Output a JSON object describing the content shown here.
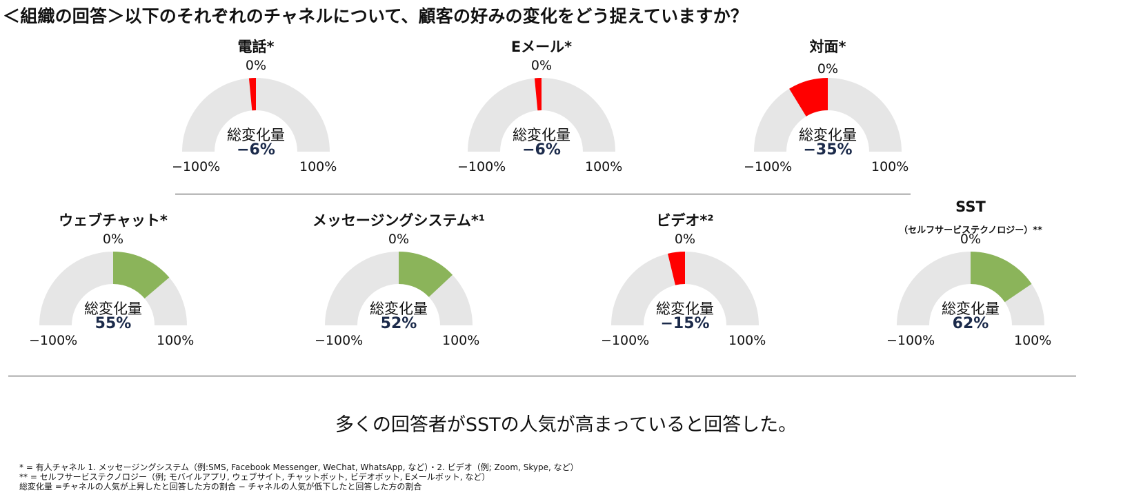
{
  "title": "＜組織の回答＞以下のそれぞれのチャネルについて、顧客の好みの変化をどう捉えていますか？",
  "gauge_labels": {
    "zero": "0%",
    "min": "−100%",
    "max": "100%",
    "total": "総変化量"
  },
  "colors": {
    "track": "#e6e6e6",
    "negative": "#ff0000",
    "positive": "#8bb45a",
    "value_text": "#1b2a4a"
  },
  "chart_data": {
    "type": "gauge",
    "range": [
      -100,
      100
    ],
    "channels": [
      {
        "name": "電話*",
        "sub": "",
        "value": -6,
        "value_label": "−6%"
      },
      {
        "name": "Eメール*",
        "sub": "",
        "value": -6,
        "value_label": "−6%"
      },
      {
        "name": "対面*",
        "sub": "",
        "value": -35,
        "value_label": "−35%"
      },
      {
        "name": "ウェブチャット*",
        "sub": "",
        "value": 55,
        "value_label": "55%"
      },
      {
        "name": "メッセージングシステム*¹",
        "sub": "",
        "value": 52,
        "value_label": "52%"
      },
      {
        "name": "ビデオ*²",
        "sub": "",
        "value": -15,
        "value_label": "−15%"
      },
      {
        "name": "SST",
        "sub": "（セルフサービステクノロジー）**",
        "value": 62,
        "value_label": "62%"
      }
    ]
  },
  "conclusion": "多くの回答者がSSTの人気が高まっていると回答した。",
  "footnotes": [
    "* = 有人チャネル 1. メッセージングシステム（例:SMS, Facebook Messenger, WeChat, WhatsApp, など）・2. ビデオ（例; Zoom, Skype, など）",
    "** = セルフサービステクノロジー（例; モバイルアプリ, ウェブサイト, チャットボット, ビデオボット, Eメールボット, など）",
    "総変化量 =チャネルの人気が上昇したと回答した方の割合 − チャネルの人気が低下したと回答した方の割合"
  ]
}
